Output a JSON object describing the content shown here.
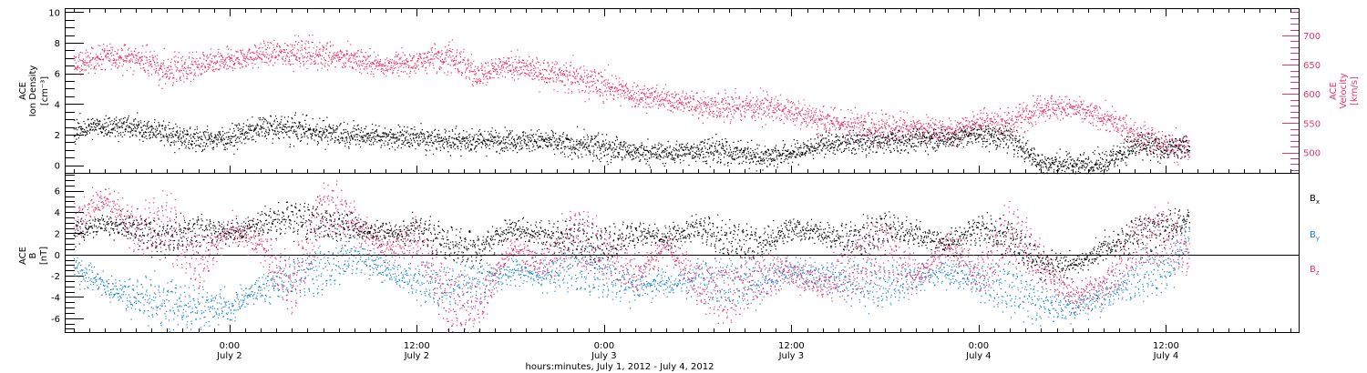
{
  "colors": {
    "black": "#000000",
    "pink": "#e8346a",
    "blue": "#1c84dc"
  },
  "x_title": "hours:minutes, July  1, 2012 - July  4, 2012",
  "x_ticks": [
    {
      "t": 24,
      "time": "0:00",
      "date": "July 2"
    },
    {
      "t": 36,
      "time": "12:00",
      "date": "July 2"
    },
    {
      "t": 48,
      "time": "0:00",
      "date": "July 3"
    },
    {
      "t": 60,
      "time": "12:00",
      "date": "July 3"
    },
    {
      "t": 72,
      "time": "0:00",
      "date": "July 4"
    },
    {
      "t": 84,
      "time": "12:00",
      "date": "July 4"
    }
  ],
  "chart_data": [
    {
      "type": "scatter",
      "panel": "top",
      "ylabel_left": [
        "ACE",
        "Ion Density",
        "[cm⁻³]"
      ],
      "ylabel_right": [
        "ACE",
        "Velocity",
        "[km/s]"
      ],
      "xlim_hours": [
        13.5,
        92.5
      ],
      "ylim_left": [
        -0.5,
        10.2
      ],
      "ylim_right": [
        465,
        745
      ],
      "yticks_left": [
        "0",
        "2",
        "4",
        "6",
        "8",
        "10"
      ],
      "yticks_right": [
        "500",
        "550",
        "600",
        "650",
        "700"
      ],
      "series": [
        {
          "label": "density",
          "color": "#000000",
          "axis": "left",
          "x": [
            14,
            16,
            18,
            20,
            22,
            24,
            26,
            28,
            30,
            32,
            34,
            36,
            38,
            40,
            42,
            44,
            46,
            48,
            50,
            52,
            54,
            56,
            58,
            60,
            62,
            64,
            66,
            68,
            70,
            72,
            74,
            76,
            78,
            80,
            82,
            84,
            85.5
          ],
          "y": [
            2.3,
            2.6,
            2.5,
            2.1,
            1.7,
            1.8,
            2.5,
            2.4,
            2.2,
            2.0,
            1.9,
            1.8,
            1.7,
            1.6,
            1.7,
            1.6,
            1.3,
            1.2,
            0.9,
            0.8,
            1.0,
            0.9,
            0.6,
            0.8,
            1.4,
            1.5,
            1.6,
            1.7,
            1.8,
            2.0,
            1.8,
            0.1,
            0.1,
            0.2,
            1.3,
            1.1,
            1.3
          ]
        },
        {
          "label": "velocity",
          "color": "#e8346a",
          "axis": "right",
          "x": [
            14,
            16,
            18,
            20,
            22,
            24,
            26,
            28,
            30,
            32,
            34,
            36,
            38,
            40,
            42,
            44,
            46,
            48,
            50,
            52,
            54,
            56,
            58,
            60,
            62,
            64,
            66,
            68,
            70,
            72,
            74,
            76,
            78,
            80,
            82,
            84,
            85.5
          ],
          "y": [
            650,
            665,
            662,
            640,
            648,
            658,
            668,
            672,
            668,
            660,
            650,
            655,
            668,
            632,
            650,
            638,
            630,
            615,
            598,
            592,
            582,
            578,
            580,
            570,
            555,
            548,
            542,
            545,
            535,
            555,
            550,
            580,
            575,
            560,
            530,
            515,
            505
          ]
        }
      ]
    },
    {
      "type": "scatter",
      "panel": "bottom",
      "ylabel": [
        "ACE",
        "B",
        "[nT]"
      ],
      "xlim_hours": [
        13.5,
        92.5
      ],
      "ylim": [
        -7.3,
        7.6
      ],
      "yticks": [
        "-6",
        "-4",
        "-2",
        "0",
        "2",
        "4",
        "6"
      ],
      "legend": [
        "Bx",
        "By",
        "Bz"
      ],
      "legend_position": "right",
      "series": [
        {
          "label": "Bx",
          "color": "#000000",
          "x": [
            14,
            16,
            18,
            20,
            22,
            24,
            26,
            28,
            30,
            32,
            34,
            36,
            38,
            40,
            42,
            44,
            46,
            48,
            50,
            52,
            54,
            56,
            58,
            60,
            62,
            64,
            66,
            68,
            70,
            72,
            74,
            76,
            78,
            80,
            82,
            84,
            85.5
          ],
          "y": [
            2.0,
            3.0,
            2.5,
            1.5,
            2.5,
            2.0,
            3.0,
            3.5,
            3.0,
            2.5,
            2.0,
            2.5,
            1.0,
            0.5,
            2.5,
            2.0,
            1.5,
            1.0,
            2.0,
            1.5,
            2.5,
            1.5,
            1.0,
            2.5,
            2.0,
            1.5,
            2.5,
            2.0,
            1.0,
            2.5,
            1.5,
            -1.0,
            -1.0,
            0.5,
            2.0,
            2.5,
            3.5
          ]
        },
        {
          "label": "By",
          "color": "#1c84dc",
          "x": [
            14,
            16,
            18,
            20,
            22,
            24,
            26,
            28,
            30,
            32,
            34,
            36,
            38,
            40,
            42,
            44,
            46,
            48,
            50,
            52,
            54,
            56,
            58,
            60,
            62,
            64,
            66,
            68,
            70,
            72,
            74,
            76,
            78,
            80,
            82,
            84,
            85.5
          ],
          "y": [
            -1.0,
            -3.0,
            -4.0,
            -4.5,
            -5.0,
            -5.0,
            -3.0,
            -2.0,
            -1.5,
            0.0,
            -1.5,
            -2.5,
            -3.0,
            -2.5,
            -1.5,
            -2.0,
            -1.0,
            -2.0,
            -3.0,
            -2.5,
            -2.0,
            -3.0,
            -2.5,
            -1.5,
            -2.0,
            -2.5,
            -3.0,
            -2.0,
            -1.5,
            -2.5,
            -3.0,
            -4.5,
            -5.0,
            -4.0,
            -2.0,
            -1.5,
            1.5
          ]
        },
        {
          "label": "Bz",
          "color": "#e8346a",
          "x": [
            14,
            16,
            18,
            20,
            22,
            24,
            26,
            28,
            30,
            32,
            34,
            36,
            38,
            40,
            42,
            44,
            46,
            48,
            50,
            52,
            54,
            56,
            58,
            60,
            62,
            64,
            66,
            68,
            70,
            72,
            74,
            76,
            78,
            80,
            82,
            84,
            85.5
          ],
          "y": [
            3.0,
            5.5,
            2.0,
            3.0,
            -1.0,
            2.5,
            1.0,
            -3.0,
            4.5,
            3.0,
            0.5,
            1.5,
            -4.5,
            -5.0,
            1.0,
            -1.0,
            2.0,
            0.5,
            -2.0,
            1.0,
            -3.0,
            -3.5,
            -2.0,
            -1.5,
            -3.0,
            -1.0,
            0.5,
            -2.0,
            1.0,
            -2.0,
            2.5,
            -1.0,
            -4.0,
            -3.0,
            1.0,
            2.0,
            -0.5
          ]
        }
      ]
    }
  ]
}
